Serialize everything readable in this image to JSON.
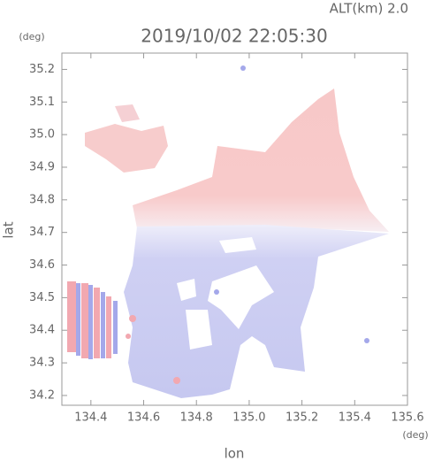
{
  "chart_data": {
    "type": "radar-map",
    "title": "2019/10/02 22:05:30",
    "subtitle": "ALT(km) 2.0",
    "x_label": "lon",
    "x_unit": "(deg)",
    "y_label": "lat",
    "y_unit": "(deg)",
    "xlim": [
      134.29,
      135.6
    ],
    "xticks": [
      134.4,
      134.6,
      134.8,
      {
        "value": 135,
        "label": "135.0"
      },
      135.2,
      135.4,
      135.6
    ],
    "ylim": [
      34.17,
      35.25
    ],
    "yticks": [
      34.2,
      34.3,
      34.4,
      34.5,
      34.6,
      34.7,
      34.8,
      34.9,
      {
        "value": 35,
        "label": "35.0"
      },
      35.1,
      35.2
    ]
  }
}
